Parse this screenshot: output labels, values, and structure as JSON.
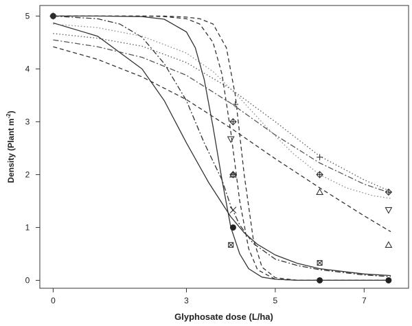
{
  "chart_data": {
    "type": "line",
    "title": "",
    "xlabel": "Glyphosate dose (L/ha)",
    "ylabel": "Density (Plant m",
    "ylabel_sup": "-2",
    "ylabel_suffix": ")",
    "xlim": [
      -0.3,
      8.0
    ],
    "ylim": [
      -0.15,
      5.2
    ],
    "x_ticks": [
      0,
      3,
      5,
      7
    ],
    "y_ticks": [
      0,
      1,
      2,
      3,
      4,
      5
    ],
    "grid": false,
    "legend": "none",
    "curves": [
      {
        "style": "solid",
        "color": "#333333",
        "x": [
          0,
          1,
          2,
          2.5,
          3,
          3.5,
          4,
          4.3,
          4.6,
          5,
          5.5,
          6,
          7,
          7.6
        ],
        "y": [
          4.87,
          4.62,
          4.0,
          3.4,
          2.6,
          1.85,
          1.2,
          0.9,
          0.68,
          0.48,
          0.32,
          0.22,
          0.12,
          0.09
        ]
      },
      {
        "style": "solid",
        "color": "#333333",
        "x": [
          0,
          1,
          2,
          2.5,
          3,
          3.2,
          3.4,
          3.6,
          3.8,
          4,
          4.2,
          4.4,
          4.7,
          5,
          5.5,
          6,
          7,
          7.6
        ],
        "y": [
          5.0,
          5.0,
          4.99,
          4.94,
          4.7,
          4.4,
          3.8,
          2.9,
          1.9,
          1.0,
          0.5,
          0.22,
          0.06,
          0.02,
          0.0,
          0.0,
          0.0,
          0.0
        ]
      },
      {
        "style": "dashed",
        "color": "#333333",
        "x": [
          0,
          1,
          2,
          2.5,
          3,
          3.3,
          3.6,
          3.8,
          4.0,
          4.2,
          4.4,
          4.6,
          5.0,
          5.5,
          6,
          7,
          7.6
        ],
        "y": [
          5.0,
          5.0,
          5.0,
          4.99,
          4.95,
          4.85,
          4.5,
          3.9,
          2.8,
          1.5,
          0.6,
          0.2,
          0.02,
          0.0,
          0.0,
          0.0,
          0.0
        ]
      },
      {
        "style": "dashed",
        "color": "#333333",
        "x": [
          0,
          1,
          2,
          2.5,
          3,
          3.3,
          3.6,
          3.9,
          4.1,
          4.3,
          4.5,
          4.7,
          5.0,
          5.5,
          6,
          7,
          7.6
        ],
        "y": [
          5.0,
          5.0,
          5.0,
          5.0,
          4.98,
          4.95,
          4.85,
          4.4,
          3.5,
          2.0,
          0.8,
          0.25,
          0.05,
          0.0,
          0.0,
          0.0,
          0.0
        ]
      },
      {
        "style": "dashdot",
        "color": "#333333",
        "x": [
          0,
          1,
          1.5,
          2,
          2.5,
          3,
          3.4,
          3.8,
          4.0,
          4.2,
          4.5,
          5,
          5.5,
          6,
          7,
          7.6
        ],
        "y": [
          5.0,
          4.95,
          4.85,
          4.6,
          4.1,
          3.4,
          2.6,
          1.9,
          1.4,
          1.05,
          0.7,
          0.4,
          0.28,
          0.2,
          0.1,
          0.07
        ]
      },
      {
        "style": "dashed",
        "color": "#333333",
        "x": [
          0,
          1,
          2,
          3,
          4,
          5,
          6,
          7,
          7.6
        ],
        "y": [
          4.42,
          4.18,
          3.85,
          3.42,
          2.88,
          2.3,
          1.75,
          1.22,
          0.92
        ]
      },
      {
        "style": "dashdot",
        "color": "#555555",
        "x": [
          0,
          1,
          2,
          3,
          4,
          5,
          6,
          7,
          7.6
        ],
        "y": [
          4.55,
          4.42,
          4.22,
          3.88,
          3.35,
          2.75,
          2.22,
          1.82,
          1.65
        ]
      },
      {
        "style": "dotted",
        "color": "#555555",
        "x": [
          0,
          1,
          2,
          3,
          4,
          5,
          6,
          7,
          7.6
        ],
        "y": [
          4.67,
          4.58,
          4.43,
          4.12,
          3.62,
          3.0,
          2.35,
          1.9,
          1.68
        ]
      },
      {
        "style": "dotted",
        "color": "#888888",
        "x": [
          0,
          1,
          2,
          3,
          3.6,
          4.2,
          4.8,
          5.4,
          6,
          6.6,
          7.2,
          7.6
        ],
        "y": [
          4.85,
          4.78,
          4.62,
          4.3,
          3.95,
          3.45,
          2.9,
          2.4,
          2.0,
          1.75,
          1.6,
          1.55
        ]
      }
    ],
    "points": [
      {
        "shape": "filled-circle",
        "x": 0,
        "y": 5.0
      },
      {
        "shape": "diamond",
        "x": 0,
        "y": 5.0
      },
      {
        "shape": "plus",
        "x": 4.1,
        "y": 3.33
      },
      {
        "shape": "diamond",
        "x": 4.05,
        "y": 3.0
      },
      {
        "shape": "triangle-down",
        "x": 4.0,
        "y": 2.67
      },
      {
        "shape": "triangle-up",
        "x": 4.05,
        "y": 2.0
      },
      {
        "shape": "diamond",
        "x": 4.05,
        "y": 2.0
      },
      {
        "shape": "cross",
        "x": 4.05,
        "y": 1.33
      },
      {
        "shape": "filled-circle",
        "x": 4.05,
        "y": 1.0
      },
      {
        "shape": "boxed-x",
        "x": 4.0,
        "y": 0.67
      },
      {
        "shape": "plus",
        "x": 6.0,
        "y": 2.33
      },
      {
        "shape": "diamond",
        "x": 6.0,
        "y": 2.0
      },
      {
        "shape": "triangle-up",
        "x": 6.0,
        "y": 1.67
      },
      {
        "shape": "boxed-x",
        "x": 6.0,
        "y": 0.33
      },
      {
        "shape": "filled-circle",
        "x": 6.0,
        "y": 0.0
      },
      {
        "shape": "diamond",
        "x": 7.55,
        "y": 1.67
      },
      {
        "shape": "triangle-down",
        "x": 7.55,
        "y": 1.33
      },
      {
        "shape": "triangle-up",
        "x": 7.55,
        "y": 0.67
      },
      {
        "shape": "filled-circle",
        "x": 7.55,
        "y": 0.0
      }
    ]
  }
}
